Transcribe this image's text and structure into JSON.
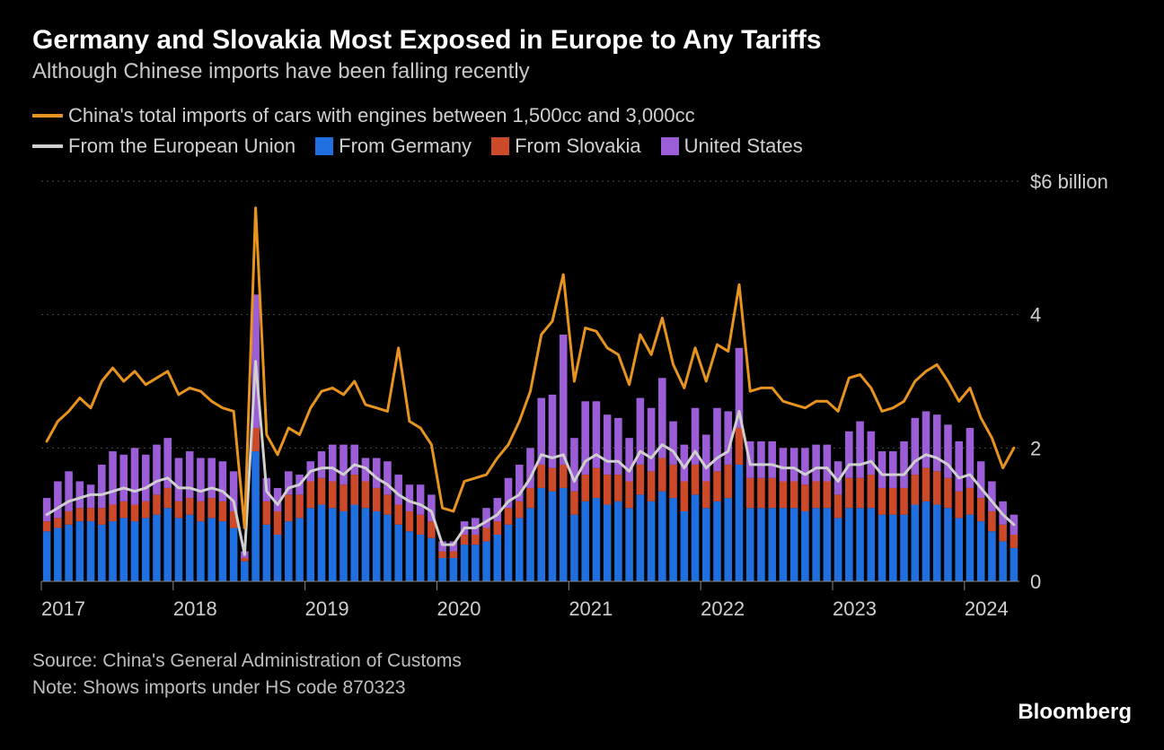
{
  "title": "Germany and Slovakia Most Exposed in Europe to Any Tariffs",
  "subtitle": "Although Chinese imports have been falling recently",
  "legend": {
    "total": "China's total imports of cars with engines between 1,500cc and 3,000cc",
    "eu": "From the European Union",
    "germany": "From Germany",
    "slovakia": "From Slovakia",
    "us": "United States"
  },
  "footer": {
    "source": "Source: China's General Administration of Customs",
    "note": "Note: Shows imports under HS code 870323"
  },
  "brand": "Bloomberg",
  "chart": {
    "type": "combo-stacked-bar-plus-lines",
    "background_color": "#000000",
    "grid_color": "#4a4a4a",
    "axis_label_color": "#d0d0d0",
    "axis_fontsize": 22,
    "x_years": [
      "2017",
      "2018",
      "2019",
      "2020",
      "2021",
      "2022",
      "2023",
      "2024"
    ],
    "y": {
      "min": 0,
      "max": 6,
      "ticks": [
        0,
        2,
        4,
        6
      ],
      "top_label": "$6 billion",
      "other_labels": [
        "4",
        "2",
        "0"
      ]
    },
    "n_points": 89,
    "colors": {
      "germany": "#1f6fe0",
      "slovakia": "#cc4a2a",
      "us": "#9b5ed6",
      "total_line": "#e6931f",
      "eu_line": "#cfcfcf"
    },
    "line_width": 3,
    "bar_width_ratio": 0.7,
    "series": {
      "germany": [
        0.75,
        0.8,
        0.85,
        0.9,
        0.9,
        0.85,
        0.9,
        0.95,
        0.9,
        0.95,
        1.0,
        1.1,
        0.95,
        1.0,
        0.9,
        0.95,
        0.9,
        0.8,
        0.3,
        1.95,
        0.85,
        0.7,
        0.9,
        0.95,
        1.1,
        1.15,
        1.1,
        1.05,
        1.15,
        1.1,
        1.05,
        1.0,
        0.85,
        0.75,
        0.7,
        0.65,
        0.35,
        0.35,
        0.55,
        0.55,
        0.6,
        0.7,
        0.85,
        0.95,
        1.1,
        1.4,
        1.35,
        1.4,
        1.0,
        1.2,
        1.25,
        1.15,
        1.2,
        1.1,
        1.3,
        1.2,
        1.35,
        1.25,
        1.05,
        1.3,
        1.1,
        1.2,
        1.25,
        1.75,
        1.1,
        1.1,
        1.1,
        1.1,
        1.1,
        1.05,
        1.1,
        1.1,
        0.95,
        1.1,
        1.1,
        1.1,
        1.0,
        1.0,
        1.0,
        1.15,
        1.2,
        1.15,
        1.1,
        0.95,
        1.0,
        0.9,
        0.75,
        0.6,
        0.5
      ],
      "slovakia": [
        0.15,
        0.15,
        0.2,
        0.2,
        0.2,
        0.25,
        0.25,
        0.25,
        0.25,
        0.25,
        0.3,
        0.3,
        0.25,
        0.25,
        0.3,
        0.3,
        0.3,
        0.25,
        0.05,
        0.35,
        0.35,
        0.35,
        0.4,
        0.35,
        0.4,
        0.4,
        0.4,
        0.4,
        0.45,
        0.4,
        0.35,
        0.3,
        0.3,
        0.3,
        0.3,
        0.25,
        0.1,
        0.1,
        0.15,
        0.15,
        0.2,
        0.2,
        0.25,
        0.25,
        0.3,
        0.35,
        0.35,
        0.35,
        0.35,
        0.4,
        0.45,
        0.45,
        0.4,
        0.4,
        0.45,
        0.45,
        0.5,
        0.5,
        0.45,
        0.45,
        0.4,
        0.45,
        0.5,
        0.55,
        0.45,
        0.45,
        0.45,
        0.4,
        0.4,
        0.4,
        0.4,
        0.4,
        0.35,
        0.45,
        0.45,
        0.5,
        0.4,
        0.4,
        0.4,
        0.45,
        0.5,
        0.5,
        0.45,
        0.4,
        0.4,
        0.35,
        0.3,
        0.25,
        0.2
      ],
      "us": [
        0.35,
        0.55,
        0.6,
        0.4,
        0.35,
        0.65,
        0.8,
        0.7,
        0.85,
        0.7,
        0.75,
        0.75,
        0.65,
        0.7,
        0.65,
        0.6,
        0.6,
        0.6,
        0.1,
        2.0,
        0.35,
        0.35,
        0.35,
        0.3,
        0.3,
        0.4,
        0.55,
        0.6,
        0.45,
        0.35,
        0.45,
        0.5,
        0.45,
        0.4,
        0.45,
        0.4,
        0.15,
        0.15,
        0.2,
        0.25,
        0.3,
        0.35,
        0.45,
        0.55,
        0.6,
        1.0,
        1.1,
        1.95,
        0.8,
        1.1,
        1.0,
        0.9,
        0.85,
        0.65,
        1.0,
        0.95,
        1.2,
        0.65,
        0.55,
        0.85,
        0.7,
        0.95,
        0.8,
        1.2,
        0.55,
        0.55,
        0.55,
        0.5,
        0.5,
        0.55,
        0.55,
        0.55,
        0.5,
        0.7,
        0.85,
        0.65,
        0.55,
        0.55,
        0.7,
        0.85,
        0.85,
        0.85,
        0.8,
        0.75,
        0.9,
        0.55,
        0.45,
        0.35,
        0.3
      ],
      "eu_line": [
        1.0,
        1.1,
        1.2,
        1.25,
        1.3,
        1.3,
        1.35,
        1.4,
        1.35,
        1.4,
        1.5,
        1.55,
        1.4,
        1.4,
        1.35,
        1.4,
        1.35,
        1.2,
        0.4,
        3.3,
        1.35,
        1.15,
        1.4,
        1.45,
        1.65,
        1.7,
        1.7,
        1.6,
        1.75,
        1.7,
        1.55,
        1.45,
        1.3,
        1.2,
        1.15,
        1.05,
        0.55,
        0.55,
        0.8,
        0.8,
        0.9,
        1.0,
        1.2,
        1.3,
        1.55,
        1.9,
        1.85,
        1.9,
        1.5,
        1.8,
        1.9,
        1.8,
        1.8,
        1.65,
        1.95,
        1.85,
        2.05,
        1.95,
        1.7,
        1.95,
        1.7,
        1.85,
        1.95,
        2.55,
        1.75,
        1.75,
        1.75,
        1.7,
        1.7,
        1.6,
        1.7,
        1.7,
        1.5,
        1.75,
        1.75,
        1.8,
        1.6,
        1.6,
        1.6,
        1.8,
        1.9,
        1.85,
        1.75,
        1.55,
        1.6,
        1.4,
        1.2,
        1.0,
        0.85
      ],
      "total_line": [
        2.1,
        2.4,
        2.55,
        2.75,
        2.6,
        3.0,
        3.2,
        3.0,
        3.15,
        2.95,
        3.05,
        3.15,
        2.8,
        2.9,
        2.85,
        2.7,
        2.6,
        2.55,
        0.8,
        5.6,
        2.2,
        1.9,
        2.3,
        2.2,
        2.6,
        2.85,
        2.9,
        2.8,
        3.0,
        2.65,
        2.6,
        2.55,
        3.5,
        2.4,
        2.3,
        2.05,
        1.1,
        1.05,
        1.5,
        1.55,
        1.6,
        1.85,
        2.05,
        2.4,
        2.85,
        3.7,
        3.9,
        4.6,
        3.0,
        3.8,
        3.75,
        3.5,
        3.4,
        2.95,
        3.7,
        3.4,
        3.95,
        3.25,
        2.9,
        3.5,
        3.0,
        3.55,
        3.45,
        4.45,
        2.85,
        2.9,
        2.9,
        2.7,
        2.65,
        2.6,
        2.7,
        2.7,
        2.55,
        3.05,
        3.1,
        2.9,
        2.55,
        2.6,
        2.7,
        3.0,
        3.15,
        3.25,
        3.0,
        2.7,
        2.9,
        2.45,
        2.15,
        1.7,
        2.0
      ]
    }
  }
}
